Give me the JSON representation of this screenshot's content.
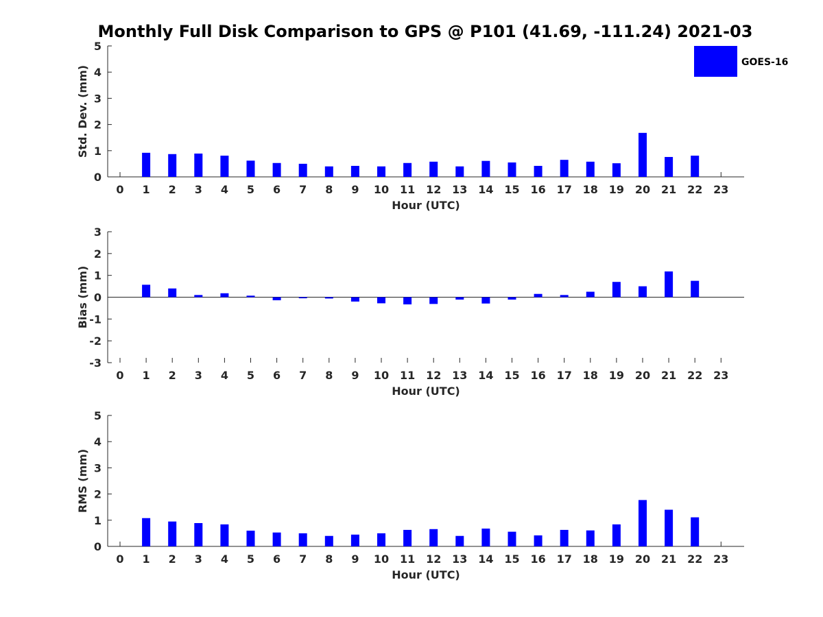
{
  "title": "Monthly Full Disk Comparison to GPS @ P101 (41.69, -111.24) 2021-03",
  "legend": {
    "label": "GOES-16",
    "color": "#0000ff",
    "placement": "top-right"
  },
  "chart_data": [
    {
      "type": "bar",
      "ylabel": "Std. Dev. (mm)",
      "xlabel": "Hour (UTC)",
      "categories": [
        "0",
        "1",
        "2",
        "3",
        "4",
        "5",
        "6",
        "7",
        "8",
        "9",
        "10",
        "11",
        "12",
        "13",
        "14",
        "15",
        "16",
        "17",
        "18",
        "19",
        "20",
        "21",
        "22",
        "23"
      ],
      "ylim": [
        0,
        5
      ],
      "yticks": [
        "0",
        "1",
        "2",
        "3",
        "4",
        "5"
      ],
      "grid": false,
      "series": [
        {
          "name": "GOES-16",
          "values": [
            null,
            0.92,
            0.87,
            0.89,
            0.81,
            0.62,
            0.53,
            0.5,
            0.4,
            0.42,
            0.4,
            0.53,
            0.58,
            0.4,
            0.61,
            0.55,
            0.42,
            0.65,
            0.58,
            0.52,
            1.68,
            0.76,
            0.81,
            null
          ]
        }
      ]
    },
    {
      "type": "bar",
      "ylabel": "Bias (mm)",
      "xlabel": "Hour (UTC)",
      "categories": [
        "0",
        "1",
        "2",
        "3",
        "4",
        "5",
        "6",
        "7",
        "8",
        "9",
        "10",
        "11",
        "12",
        "13",
        "14",
        "15",
        "16",
        "17",
        "18",
        "19",
        "20",
        "21",
        "22",
        "23"
      ],
      "ylim": [
        -3,
        3
      ],
      "yticks": [
        "-3",
        "-2",
        "-1",
        "0",
        "1",
        "2",
        "3"
      ],
      "grid": false,
      "series": [
        {
          "name": "GOES-16",
          "values": [
            null,
            0.57,
            0.4,
            0.1,
            0.18,
            0.07,
            -0.14,
            -0.05,
            -0.06,
            -0.2,
            -0.28,
            -0.33,
            -0.31,
            -0.11,
            -0.29,
            -0.11,
            0.15,
            0.1,
            0.25,
            0.7,
            0.5,
            1.18,
            0.75,
            null
          ]
        }
      ]
    },
    {
      "type": "bar",
      "ylabel": "RMS (mm)",
      "xlabel": "Hour (UTC)",
      "categories": [
        "0",
        "1",
        "2",
        "3",
        "4",
        "5",
        "6",
        "7",
        "8",
        "9",
        "10",
        "11",
        "12",
        "13",
        "14",
        "15",
        "16",
        "17",
        "18",
        "19",
        "20",
        "21",
        "22",
        "23"
      ],
      "ylim": [
        0,
        5
      ],
      "yticks": [
        "0",
        "1",
        "2",
        "3",
        "4",
        "5"
      ],
      "grid": false,
      "series": [
        {
          "name": "GOES-16",
          "values": [
            null,
            1.08,
            0.95,
            0.89,
            0.84,
            0.6,
            0.53,
            0.5,
            0.4,
            0.45,
            0.5,
            0.63,
            0.66,
            0.4,
            0.68,
            0.56,
            0.42,
            0.63,
            0.61,
            0.84,
            1.77,
            1.4,
            1.11,
            null
          ]
        }
      ]
    }
  ]
}
